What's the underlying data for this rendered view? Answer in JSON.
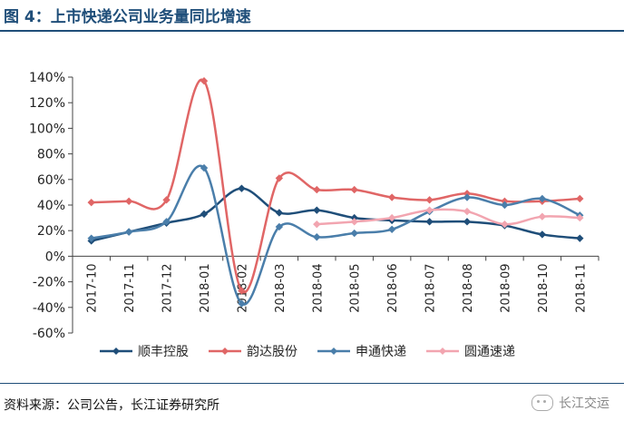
{
  "header": {
    "title": "图 4：上市快递公司业务量同比增速"
  },
  "footer": {
    "source": "资料来源：公司公告，长江证券研究所",
    "brand": "长江交运"
  },
  "chart_data": {
    "type": "line",
    "title": "",
    "xlabel": "",
    "ylabel": "",
    "ylim": [
      -60,
      140
    ],
    "ytick_step": 20,
    "yticks": [
      "-60%",
      "-40%",
      "-20%",
      "0%",
      "20%",
      "40%",
      "60%",
      "80%",
      "100%",
      "120%",
      "140%"
    ],
    "categories": [
      "2017-10",
      "2017-11",
      "2017-12",
      "2018-01",
      "2018-02",
      "2018-03",
      "2018-04",
      "2018-05",
      "2018-06",
      "2018-07",
      "2018-08",
      "2018-09",
      "2018-10",
      "2018-11"
    ],
    "grid": false,
    "smooth": true,
    "legend_position": "bottom",
    "series": [
      {
        "name": "顺丰控股",
        "color": "#1f4e79",
        "marker": "diamond",
        "values": [
          12,
          19,
          26,
          33,
          53,
          34,
          36,
          30,
          28,
          27,
          27,
          24,
          17,
          14
        ]
      },
      {
        "name": "韵达股份",
        "color": "#e06666",
        "marker": "diamond",
        "values": [
          42,
          43,
          44,
          137,
          -27,
          61,
          52,
          52,
          46,
          44,
          49,
          43,
          43,
          45
        ]
      },
      {
        "name": "申通快递",
        "color": "#4a7eaa",
        "marker": "diamond",
        "values": [
          14,
          19,
          27,
          69,
          -37,
          23,
          15,
          18,
          21,
          35,
          46,
          40,
          45,
          32
        ]
      },
      {
        "name": "圆通速递",
        "color": "#f2a5b0",
        "marker": "diamond",
        "values": [
          null,
          null,
          null,
          null,
          null,
          null,
          25,
          27,
          30,
          36,
          35,
          25,
          31,
          30
        ]
      }
    ]
  }
}
